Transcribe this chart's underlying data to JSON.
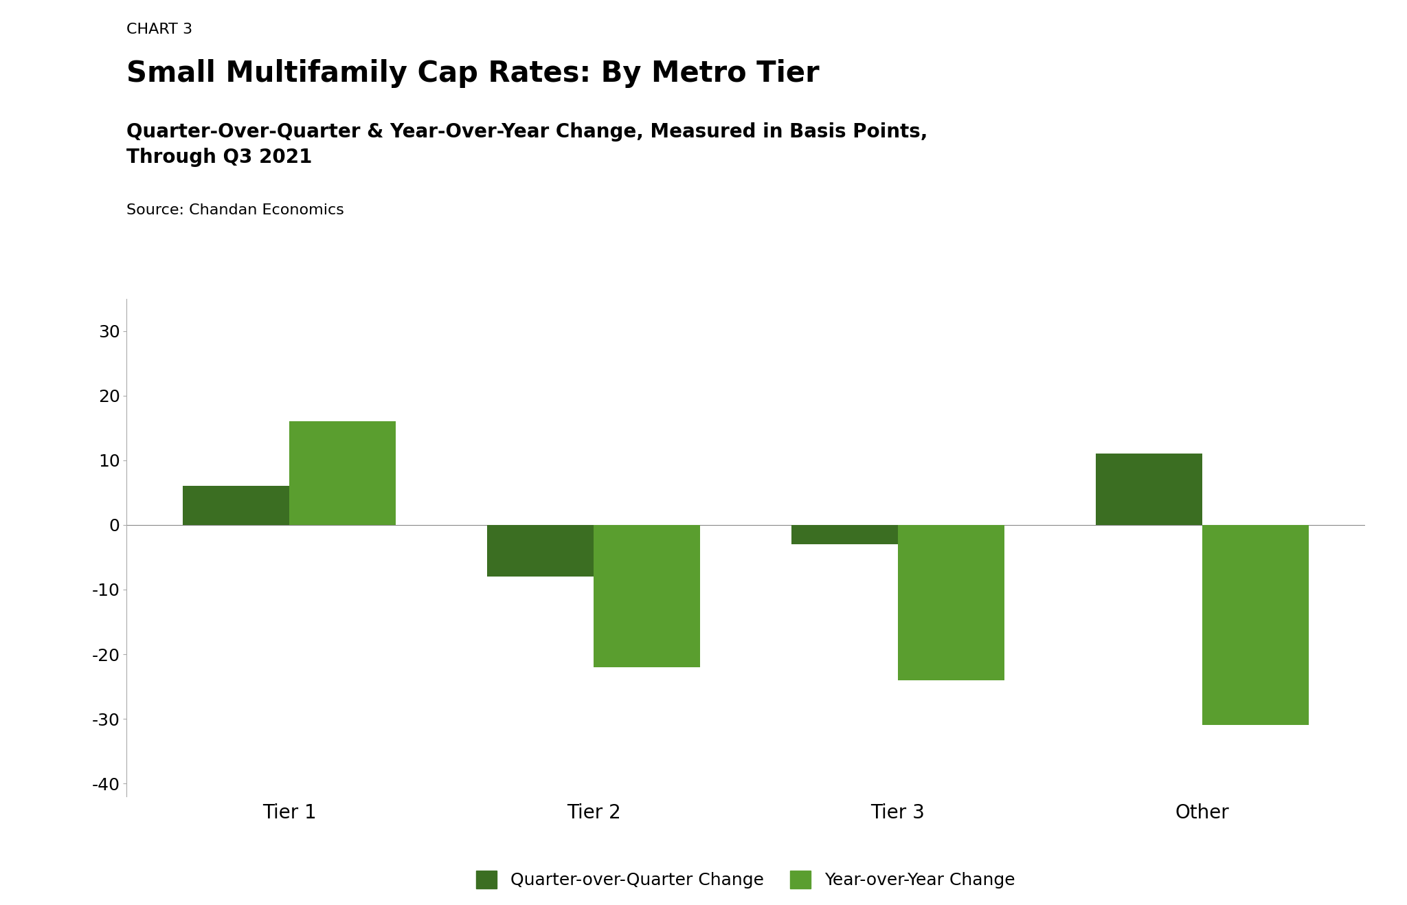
{
  "chart_label": "CHART 3",
  "title": "Small Multifamily Cap Rates: By Metro Tier",
  "subtitle": "Quarter-Over-Quarter & Year-Over-Year Change, Measured in Basis Points,\nThrough Q3 2021",
  "source": "Source: Chandan Economics",
  "categories": [
    "Tier 1",
    "Tier 2",
    "Tier 3",
    "Other"
  ],
  "qoq_values": [
    6,
    -8,
    -3,
    11
  ],
  "yoy_values": [
    16,
    -22,
    -24,
    -31
  ],
  "qoq_color": "#3b6e22",
  "yoy_color": "#5a9e2f",
  "ylim": [
    -42,
    35
  ],
  "yticks": [
    -40,
    -30,
    -20,
    -10,
    0,
    10,
    20,
    30
  ],
  "bar_width": 0.35,
  "background_color": "#ffffff",
  "legend_qoq": "Quarter-over-Quarter Change",
  "legend_yoy": "Year-over-Year Change",
  "title_fontsize": 30,
  "subtitle_fontsize": 20,
  "chart_label_fontsize": 16,
  "source_fontsize": 16,
  "tick_fontsize": 18,
  "legend_fontsize": 18,
  "xtick_fontsize": 20
}
